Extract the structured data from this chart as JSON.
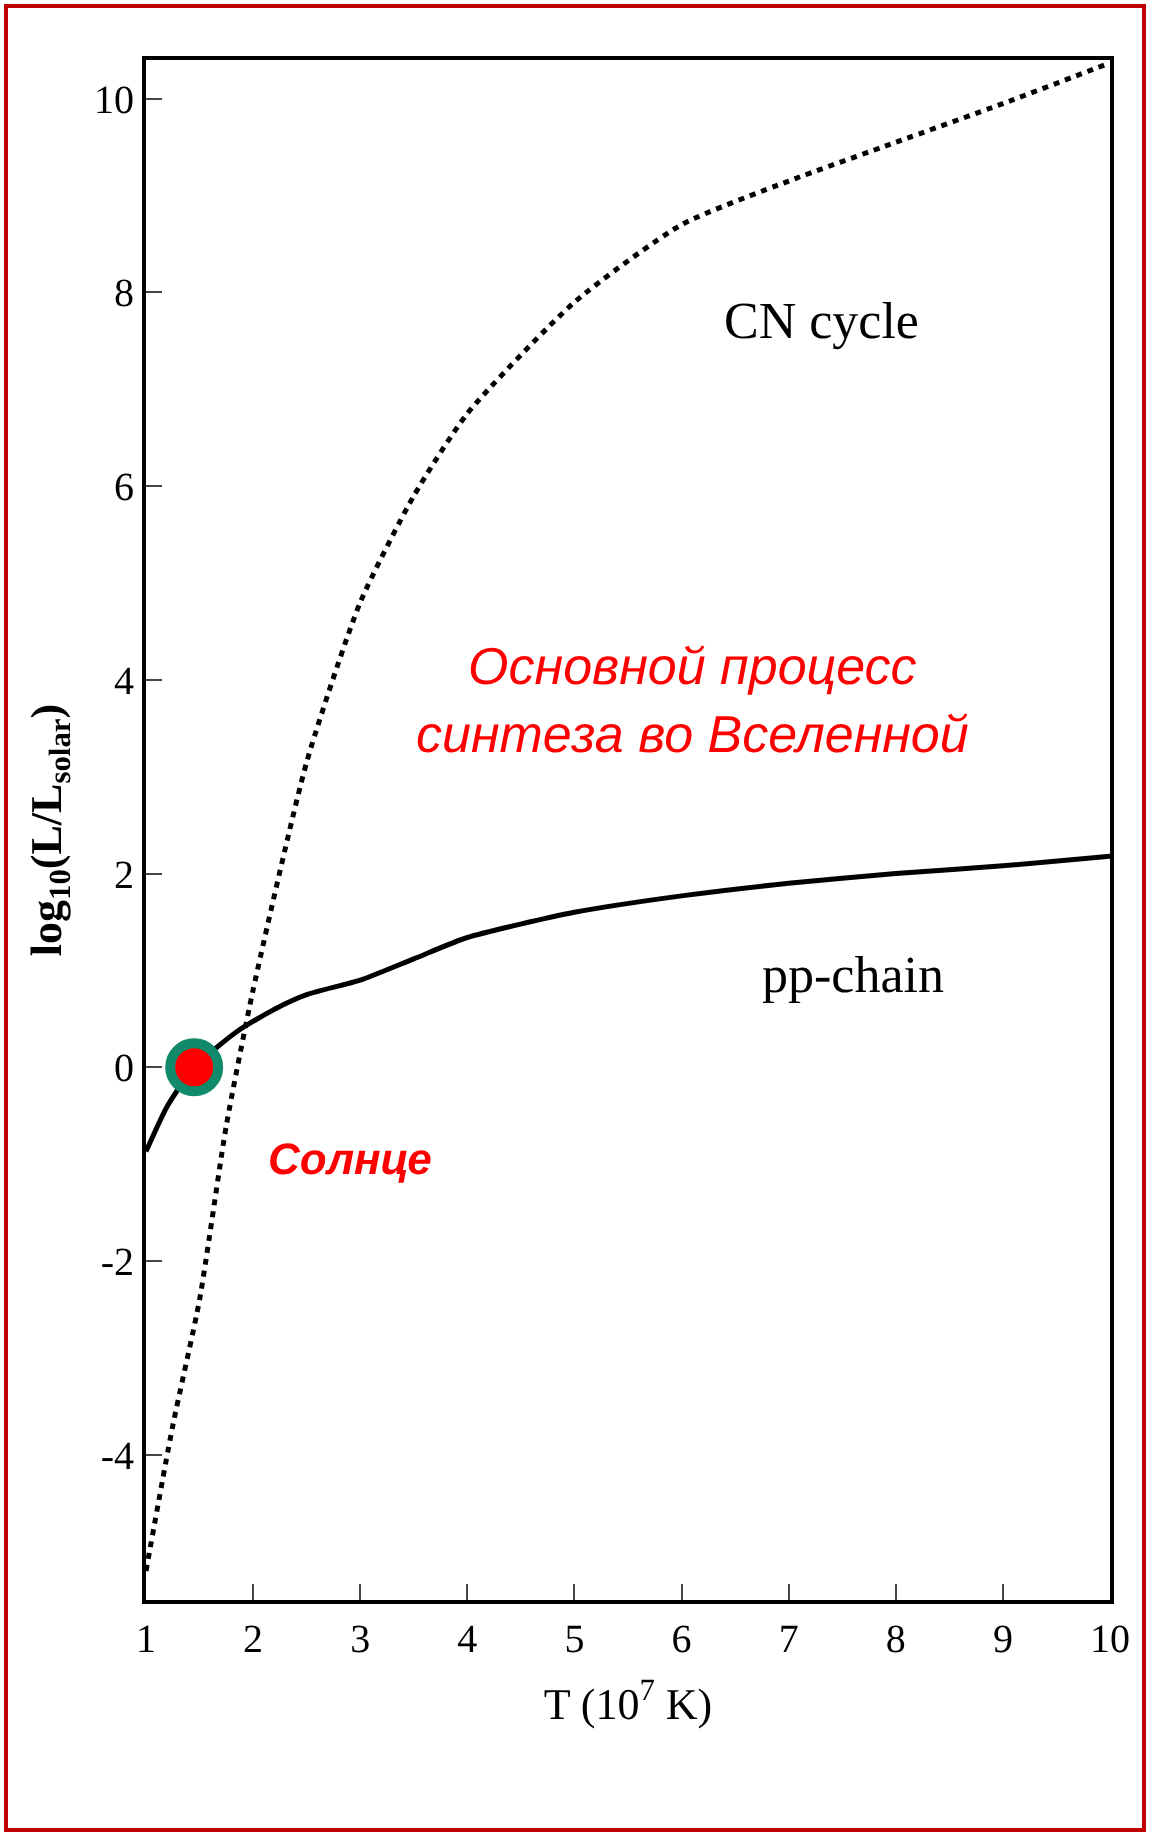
{
  "chart_data": {
    "type": "line",
    "xlabel": "T (10$^{7}$ K)",
    "ylabel": "log$_{10}$(L/L$_{solar}$)",
    "xlim": [
      1,
      10
    ],
    "xticks": [
      1,
      2,
      3,
      4,
      5,
      6,
      7,
      8,
      9,
      10
    ],
    "ylim": [
      -5.5,
      10.4
    ],
    "yticks": [
      -4,
      -2,
      0,
      2,
      4,
      6,
      8,
      10
    ],
    "grid": false,
    "series": [
      {
        "color": "#000000",
        "line_style": "solid",
        "marker": "none",
        "x": [
          1,
          1.2,
          1.45,
          1.85,
          2.2,
          2.5,
          3,
          3.5,
          4,
          5,
          6,
          7,
          8,
          9,
          10
        ],
        "values": [
          -0.87,
          -0.4,
          0,
          0.37,
          0.6,
          0.75,
          0.9,
          1.12,
          1.34,
          1.6,
          1.77,
          1.9,
          2.0,
          2.08,
          2.18
        ]
      },
      {
        "color": "#000000",
        "line_style": "dotted",
        "marker": "none",
        "x": [
          1,
          1.25,
          1.5,
          1.75,
          2,
          2.5,
          3,
          3.5,
          4,
          5,
          6,
          7,
          8,
          9,
          10
        ],
        "values": [
          -5.2,
          -3.7,
          -2.4,
          -0.6,
          0.8,
          3.15,
          4.8,
          5.9,
          6.75,
          7.9,
          8.7,
          9.15,
          9.55,
          9.95,
          10.37
        ]
      },
      {
        "type": "scatter",
        "color": "#ff0000",
        "marker": "circle",
        "x": [
          1.45
        ],
        "values": [
          0
        ]
      }
    ],
    "annotations": [
      "CN cycle",
      "pp-chain",
      "Основной процесс\nсинтеза во Вселенной",
      "Солнце"
    ]
  }
}
